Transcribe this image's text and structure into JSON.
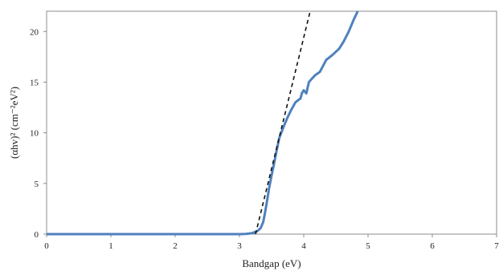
{
  "chart_data": {
    "type": "line",
    "xlabel": "Bandgap (eV)",
    "ylabel": "(αhv)² (cm⁻²eV²)",
    "xlim": [
      0,
      7
    ],
    "ylim": [
      0,
      22
    ],
    "x_ticks": [
      0,
      1,
      2,
      3,
      4,
      5,
      6,
      7
    ],
    "y_ticks": [
      0,
      5,
      10,
      15,
      20
    ],
    "grid": false,
    "legend": "none",
    "series": [
      {
        "style": "solid",
        "color": "#4f81bd",
        "points": [
          [
            0,
            0
          ],
          [
            3.0,
            0
          ],
          [
            3.1,
            0.02
          ],
          [
            3.2,
            0.1
          ],
          [
            3.28,
            0.3
          ],
          [
            3.33,
            0.6
          ],
          [
            3.37,
            1.2
          ],
          [
            3.4,
            2.2
          ],
          [
            3.43,
            3.3
          ],
          [
            3.46,
            4.5
          ],
          [
            3.5,
            5.8
          ],
          [
            3.54,
            7.0
          ],
          [
            3.58,
            8.3
          ],
          [
            3.62,
            9.5
          ],
          [
            3.68,
            10.5
          ],
          [
            3.74,
            11.4
          ],
          [
            3.8,
            12.2
          ],
          [
            3.87,
            13.0
          ],
          [
            3.95,
            13.4
          ],
          [
            3.97,
            13.9
          ],
          [
            4.0,
            14.2
          ],
          [
            4.04,
            13.9
          ],
          [
            4.08,
            15.0
          ],
          [
            4.12,
            15.3
          ],
          [
            4.18,
            15.7
          ],
          [
            4.25,
            16.0
          ],
          [
            4.3,
            16.6
          ],
          [
            4.35,
            17.2
          ],
          [
            4.45,
            17.7
          ],
          [
            4.55,
            18.3
          ],
          [
            4.62,
            19.0
          ],
          [
            4.7,
            20.0
          ],
          [
            4.78,
            21.2
          ],
          [
            4.84,
            22.0
          ]
        ]
      },
      {
        "style": "dashed",
        "color": "#111111",
        "points": [
          [
            3.25,
            0
          ],
          [
            4.1,
            22.0
          ]
        ]
      }
    ]
  }
}
